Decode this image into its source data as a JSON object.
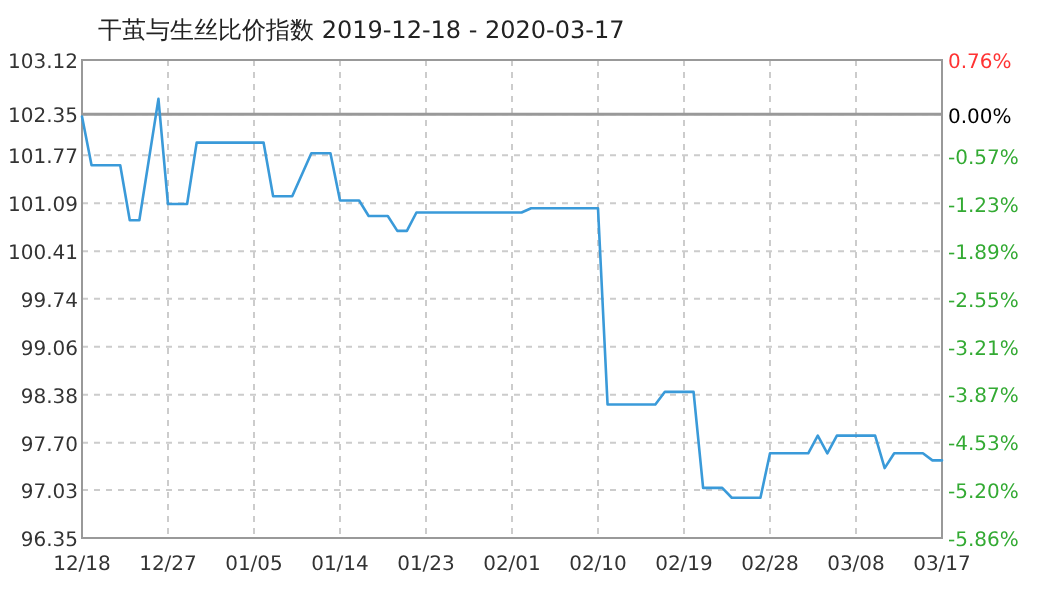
{
  "chart_data": {
    "type": "line",
    "title": "干茧与生丝比价指数 2019-12-18 - 2020-03-17",
    "x": [
      "2019-12-18",
      "2019-12-19",
      "2019-12-22",
      "2019-12-23",
      "2019-12-24",
      "2019-12-26",
      "2019-12-27",
      "2019-12-29",
      "2019-12-30",
      "2020-01-06",
      "2020-01-07",
      "2020-01-09",
      "2020-01-11",
      "2020-01-13",
      "2020-01-14",
      "2020-01-16",
      "2020-01-17",
      "2020-01-19",
      "2020-01-20",
      "2020-01-21",
      "2020-01-22",
      "2020-02-02",
      "2020-02-03",
      "2020-02-10",
      "2020-02-11",
      "2020-02-16",
      "2020-02-17",
      "2020-02-20",
      "2020-02-21",
      "2020-02-23",
      "2020-02-24",
      "2020-02-27",
      "2020-02-28",
      "2020-03-03",
      "2020-03-04",
      "2020-03-05",
      "2020-03-06",
      "2020-03-10",
      "2020-03-11",
      "2020-03-12",
      "2020-03-15",
      "2020-03-16",
      "2020-03-17"
    ],
    "series": [
      {
        "color": "#3a9ad9",
        "values": [
          102.32,
          101.63,
          101.63,
          100.85,
          100.85,
          102.57,
          101.08,
          101.08,
          101.95,
          101.95,
          101.19,
          101.19,
          101.8,
          101.8,
          101.13,
          101.13,
          100.91,
          100.91,
          100.7,
          100.7,
          100.96,
          100.96,
          101.02,
          101.02,
          98.24,
          98.24,
          98.42,
          98.42,
          97.06,
          97.06,
          96.92,
          96.92,
          97.55,
          97.55,
          97.8,
          97.55,
          97.8,
          97.8,
          97.34,
          97.55,
          97.55,
          97.45,
          97.45
        ]
      }
    ],
    "xlim": [
      "2019-12-18",
      "2020-03-17"
    ],
    "xticks": [
      {
        "value": "2019-12-18",
        "label": "12/18"
      },
      {
        "value": "2019-12-27",
        "label": "12/27"
      },
      {
        "value": "2020-01-05",
        "label": "01/05"
      },
      {
        "value": "2020-01-14",
        "label": "01/14"
      },
      {
        "value": "2020-01-23",
        "label": "01/23"
      },
      {
        "value": "2020-02-01",
        "label": "02/01"
      },
      {
        "value": "2020-02-10",
        "label": "02/10"
      },
      {
        "value": "2020-02-19",
        "label": "02/19"
      },
      {
        "value": "2020-02-28",
        "label": "02/28"
      },
      {
        "value": "2020-03-08",
        "label": "03/08"
      },
      {
        "value": "2020-03-17",
        "label": "03/17"
      }
    ],
    "ylim": [
      96.35,
      103.12
    ],
    "yticks": [
      96.35,
      97.03,
      {
        "value": 97.7,
        "label": "97.70"
      },
      98.38,
      99.06,
      99.74,
      100.41,
      101.09,
      101.77,
      102.35,
      103.12
    ],
    "y2lim": [
      -5.86,
      0.76
    ],
    "y2ticks": [
      {
        "value": -5.86,
        "label": "-5.86%"
      },
      {
        "value": -5.2,
        "label": "-5.20%"
      },
      {
        "value": -4.53,
        "label": "-4.53%"
      },
      {
        "value": -3.87,
        "label": "-3.87%"
      },
      {
        "value": -3.21,
        "label": "-3.21%"
      },
      {
        "value": -2.55,
        "label": "-2.55%"
      },
      {
        "value": -1.89,
        "label": "-1.89%"
      },
      {
        "value": -1.23,
        "label": "-1.23%"
      },
      {
        "value": -0.57,
        "label": "-0.57%"
      },
      {
        "value": 0,
        "label": "0.00%"
      },
      {
        "value": 0.76,
        "label": "0.76%"
      }
    ],
    "ref_lines": [
      {
        "axis": "y",
        "value": 102.35,
        "color": "#999999"
      }
    ],
    "grid": true,
    "line_style": "solid"
  }
}
